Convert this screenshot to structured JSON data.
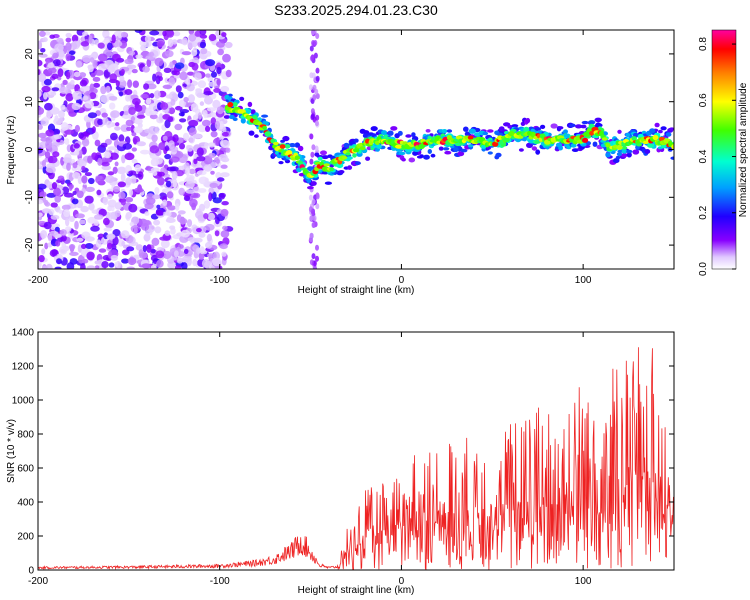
{
  "title": "S233.2025.294.01.23.C30",
  "chart_data": [
    {
      "type": "heatmap",
      "xlabel": "Height of straight line (km)",
      "ylabel": "Frequency (Hz)",
      "xlim": [
        -200,
        150
      ],
      "ylim": [
        -25,
        25
      ],
      "xticks": [
        -200,
        -100,
        0,
        100
      ],
      "yticks": [
        20,
        10,
        0,
        -10,
        -20
      ],
      "colorbar": {
        "label": "Normalized spectral amplitude",
        "range": [
          0,
          0.85
        ],
        "ticks": [
          "0.0",
          "0.2",
          "0.4",
          "0.6",
          "0.8"
        ]
      },
      "ridge": {
        "description_points_x": [
          -95,
          -85,
          -80,
          -75,
          -70,
          -60,
          -55,
          -50,
          -45,
          -40,
          -30,
          -20,
          -10,
          0,
          10,
          20,
          30,
          40,
          50,
          60,
          70,
          80,
          90,
          100,
          105,
          110,
          115,
          120,
          130,
          140,
          150
        ],
        "description_points_y": [
          9,
          7,
          6,
          4,
          1,
          -1,
          -3,
          -6,
          -3,
          -4,
          -1,
          1,
          2,
          1,
          1,
          2,
          2,
          2,
          1,
          3,
          3,
          2,
          2,
          2,
          4,
          3,
          0,
          1,
          2,
          2,
          1
        ]
      }
    },
    {
      "type": "line",
      "xlabel": "Height of straight line (km)",
      "ylabel": "SNR (10 * v/v)",
      "xlim": [
        -200,
        150
      ],
      "ylim": [
        0,
        1400
      ],
      "xticks": [
        -200,
        -100,
        0,
        100
      ],
      "yticks": [
        0,
        200,
        400,
        600,
        800,
        1000,
        1200,
        1400
      ],
      "color": "#ff0000",
      "envelope_x": [
        -200,
        -150,
        -100,
        -80,
        -70,
        -60,
        -55,
        -50,
        -45,
        -40,
        -35,
        -30,
        -25,
        -20,
        -10,
        0,
        10,
        20,
        40,
        60,
        80,
        100,
        120,
        130,
        140,
        150
      ],
      "envelope_y": [
        20,
        25,
        35,
        60,
        90,
        170,
        250,
        150,
        40,
        20,
        30,
        260,
        320,
        480,
        520,
        640,
        700,
        760,
        800,
        900,
        1000,
        1150,
        1250,
        1350,
        1300,
        1000
      ]
    }
  ]
}
